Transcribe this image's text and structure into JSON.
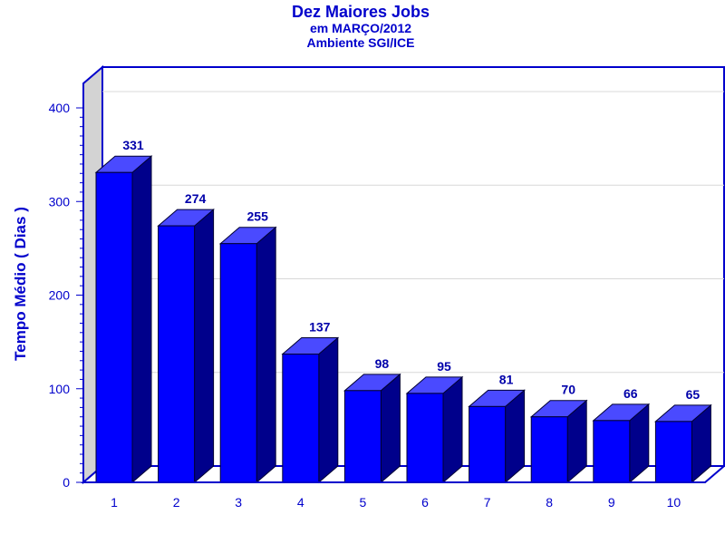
{
  "chart_data": {
    "type": "bar",
    "title": "Dez Maiores Jobs",
    "subtitle_lines": [
      "em MARÇO/2012",
      "Ambiente SGI/ICE"
    ],
    "xlabel": "",
    "ylabel": "Tempo Médio ( Dias )",
    "categories": [
      "1",
      "2",
      "3",
      "4",
      "5",
      "6",
      "7",
      "8",
      "9",
      "10"
    ],
    "values": [
      331,
      274,
      255,
      137,
      98,
      95,
      81,
      70,
      66,
      65
    ],
    "ylim": [
      0,
      400
    ],
    "yticks": [
      "0",
      "100",
      "200",
      "300",
      "400"
    ],
    "grid": true,
    "legend": "none",
    "colors": {
      "bar_front": "#0000ff",
      "bar_top": "#4a4aff",
      "bar_side": "#00008b",
      "axis": "#0000cc",
      "wall": "#d3d3d3"
    }
  }
}
